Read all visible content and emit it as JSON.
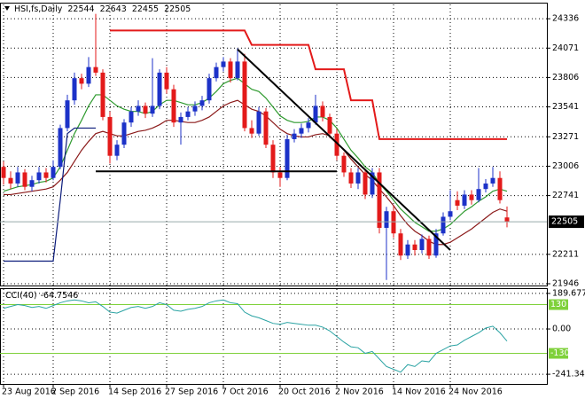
{
  "chart_data": [
    {
      "type": "candlestick",
      "title": "HSI,fs,Daily",
      "categories": [
        "23 Aug 2016",
        null,
        null,
        null,
        null,
        null,
        null,
        "2 Sep 2016",
        null,
        null,
        null,
        null,
        null,
        null,
        null,
        "14 Sep 2016",
        null,
        null,
        null,
        null,
        null,
        null,
        null,
        "27 Sep 2016",
        null,
        null,
        null,
        null,
        null,
        null,
        null,
        "7 Oct 2016",
        null,
        null,
        null,
        null,
        null,
        null,
        null,
        "20 Oct 2016",
        null,
        null,
        null,
        null,
        null,
        null,
        null,
        "2 Nov 2016",
        null,
        null,
        null,
        null,
        null,
        null,
        null,
        "14 Nov 2016",
        null,
        null,
        null,
        null,
        null,
        null,
        null,
        "24 Nov 2016",
        null,
        null,
        null,
        null,
        null,
        null,
        null,
        null
      ],
      "open": [
        23000,
        22900,
        22850,
        22950,
        22820,
        22880,
        22950,
        22900,
        23000,
        23350,
        23600,
        23800,
        23750,
        23900,
        23850,
        23450,
        23100,
        23200,
        23400,
        23500,
        23550,
        23480,
        23550,
        23850,
        23700,
        23400,
        23450,
        23500,
        23550,
        23600,
        23800,
        23900,
        23950,
        23800,
        23950,
        23350,
        23300,
        23500,
        23200,
        22950,
        22900,
        23250,
        23300,
        23350,
        23400,
        23550,
        23450,
        23300,
        23100,
        22950,
        22850,
        22950,
        22750,
        22950,
        22450,
        22600,
        22400,
        22200,
        22300,
        22250,
        22350,
        22200,
        22400,
        22550,
        22700,
        22650,
        22750,
        22700,
        22800,
        22850,
        22900,
        22544
      ],
      "high": [
        23050,
        22960,
        23000,
        22980,
        22920,
        23000,
        22990,
        23060,
        23380,
        23650,
        23850,
        23840,
        23990,
        24380,
        23880,
        23500,
        23240,
        23430,
        23540,
        23600,
        23580,
        23980,
        23880,
        23900,
        23740,
        23490,
        23540,
        23590,
        23640,
        23840,
        23940,
        23990,
        23980,
        24070,
        24020,
        23420,
        23540,
        23530,
        23240,
        23000,
        23290,
        23340,
        23390,
        23440,
        23650,
        23590,
        23480,
        23340,
        23130,
        22990,
        22990,
        22980,
        22990,
        22990,
        22640,
        22650,
        22440,
        22340,
        22340,
        22390,
        22380,
        22440,
        22590,
        22790,
        22780,
        22790,
        22790,
        22990,
        22890,
        23000,
        22960,
        22643
      ],
      "low": [
        22840,
        22800,
        22820,
        22790,
        22780,
        22850,
        22860,
        22880,
        22980,
        23320,
        23560,
        23700,
        23720,
        23820,
        23420,
        23030,
        23060,
        23170,
        23360,
        23460,
        23440,
        23450,
        23520,
        23660,
        23360,
        23200,
        23420,
        23460,
        23510,
        23570,
        23770,
        23860,
        23760,
        23780,
        23320,
        23260,
        23280,
        23170,
        22900,
        22820,
        22880,
        23220,
        23260,
        23310,
        23380,
        23410,
        23260,
        23060,
        22910,
        22810,
        22800,
        22710,
        22720,
        22400,
        21980,
        22360,
        22160,
        22170,
        22200,
        22220,
        22170,
        22180,
        22380,
        22520,
        22610,
        22620,
        22660,
        22680,
        22770,
        22820,
        22670,
        22455
      ],
      "close": [
        22900,
        22850,
        22950,
        22820,
        22880,
        22950,
        22900,
        23000,
        23350,
        23600,
        23800,
        23750,
        23900,
        23850,
        23450,
        23100,
        23200,
        23400,
        23500,
        23550,
        23480,
        23550,
        23850,
        23700,
        23400,
        23450,
        23500,
        23550,
        23600,
        23800,
        23900,
        23950,
        23800,
        23950,
        23350,
        23300,
        23500,
        23200,
        22950,
        22900,
        23250,
        23300,
        23350,
        23400,
        23550,
        23450,
        23300,
        23100,
        22950,
        22850,
        22950,
        22750,
        22950,
        22450,
        22600,
        22400,
        22200,
        22300,
        22250,
        22350,
        22200,
        22400,
        22550,
        22600,
        22650,
        22750,
        22700,
        22800,
        22850,
        22900,
        22700,
        22505
      ],
      "up_color": "#1c32c8",
      "down_color": "#e31a1a",
      "series": [
        {
          "color": "#2e9a2e",
          "values": [
            22780,
            22800,
            22820,
            22830,
            22840,
            22860,
            22870,
            22900,
            23000,
            23150,
            23300,
            23420,
            23550,
            23650,
            23650,
            23600,
            23550,
            23520,
            23500,
            23500,
            23480,
            23500,
            23560,
            23600,
            23600,
            23580,
            23560,
            23560,
            23580,
            23620,
            23680,
            23750,
            23780,
            23800,
            23750,
            23700,
            23680,
            23620,
            23540,
            23460,
            23420,
            23400,
            23400,
            23410,
            23450,
            23450,
            23420,
            23350,
            23250,
            23150,
            23080,
            23000,
            22950,
            22850,
            22780,
            22700,
            22620,
            22560,
            22500,
            22460,
            22420,
            22420,
            22440,
            22480,
            22540,
            22600,
            22640,
            22690,
            22730,
            22780,
            22800,
            22780
          ]
        },
        {
          "color": "#8b1a1a",
          "values": [
            22750,
            22750,
            22760,
            22770,
            22780,
            22790,
            22800,
            22820,
            22880,
            22950,
            23050,
            23150,
            23230,
            23300,
            23320,
            23300,
            23280,
            23280,
            23300,
            23320,
            23330,
            23350,
            23380,
            23420,
            23420,
            23410,
            23400,
            23400,
            23420,
            23450,
            23500,
            23550,
            23580,
            23600,
            23560,
            23520,
            23500,
            23460,
            23400,
            23340,
            23300,
            23280,
            23270,
            23270,
            23290,
            23300,
            23280,
            23220,
            23150,
            23070,
            23000,
            22930,
            22880,
            22800,
            22730,
            22650,
            22560,
            22480,
            22420,
            22380,
            22330,
            22300,
            22300,
            22320,
            22360,
            22400,
            22440,
            22490,
            22540,
            22590,
            22620,
            22600
          ]
        },
        {
          "color": "#e31a1a",
          "values": [
            null,
            null,
            null,
            null,
            null,
            null,
            null,
            null,
            null,
            null,
            null,
            null,
            null,
            null,
            null,
            24230,
            24230,
            24230,
            24230,
            24230,
            24230,
            24230,
            24230,
            24230,
            24230,
            24230,
            24230,
            24230,
            24230,
            24230,
            24230,
            24230,
            24230,
            24230,
            24230,
            24100,
            24100,
            24100,
            24100,
            24100,
            24100,
            24100,
            24100,
            24100,
            23880,
            23880,
            23880,
            23880,
            23880,
            23600,
            23600,
            23600,
            23600,
            23250,
            23250,
            23250,
            23250,
            23250,
            23250,
            23250,
            23250,
            23250,
            23250,
            23250,
            23250,
            23250,
            23250,
            23250,
            23250,
            23250,
            23250,
            23250
          ]
        },
        {
          "color": "#0a1a7a",
          "values": [
            22150,
            22150,
            22150,
            22150,
            22150,
            22150,
            22150,
            22150,
            22700,
            23300,
            23350,
            23350,
            23350,
            23350,
            null,
            null,
            null,
            null,
            null,
            null,
            null,
            null,
            null,
            null,
            null,
            null,
            null,
            null,
            null,
            null,
            null,
            null,
            null,
            null,
            null,
            null,
            null,
            null,
            null,
            null,
            null,
            null,
            null,
            null,
            null,
            null,
            null,
            null,
            null,
            null,
            null,
            null,
            null,
            null,
            null,
            null,
            null,
            null,
            null,
            null,
            null,
            null,
            null,
            null,
            null,
            null,
            null,
            null,
            null,
            null,
            null,
            null
          ]
        }
      ],
      "trendlines": [
        {
          "x": [
            33,
            63
          ],
          "values": [
            24060,
            22250
          ]
        },
        {
          "x": [
            13,
            47
          ],
          "values": [
            22960,
            22960
          ]
        }
      ],
      "ylim": [
        21930,
        24465
      ],
      "yticks": [
        21946,
        22211,
        22741,
        23006,
        23271,
        23541,
        23806,
        24071,
        24336
      ],
      "grid": true
    },
    {
      "type": "line",
      "title": "CCI(40)",
      "series": [
        {
          "color": "#2aa3a3",
          "values": [
            110,
            120,
            130,
            125,
            115,
            120,
            110,
            125,
            140,
            150,
            155,
            150,
            140,
            145,
            120,
            90,
            85,
            100,
            115,
            120,
            110,
            120,
            140,
            130,
            100,
            95,
            105,
            110,
            120,
            140,
            150,
            155,
            140,
            135,
            90,
            70,
            60,
            45,
            30,
            25,
            35,
            30,
            25,
            20,
            20,
            10,
            -10,
            -40,
            -70,
            -95,
            -100,
            -130,
            -120,
            -160,
            -200,
            -215,
            -230,
            -190,
            -200,
            -170,
            -175,
            -130,
            -110,
            -90,
            -85,
            -60,
            -40,
            -20,
            5,
            15,
            -20,
            -64.7546
          ]
        }
      ],
      "levels": [
        130,
        -130
      ],
      "level_color": "#7fd13b",
      "ylim": [
        -293,
        213
      ],
      "yticks": [
        189.6779,
        {
          "value": 0,
          "label": "0.00"
        },
        -241.348
      ],
      "grid": true
    }
  ]
}
